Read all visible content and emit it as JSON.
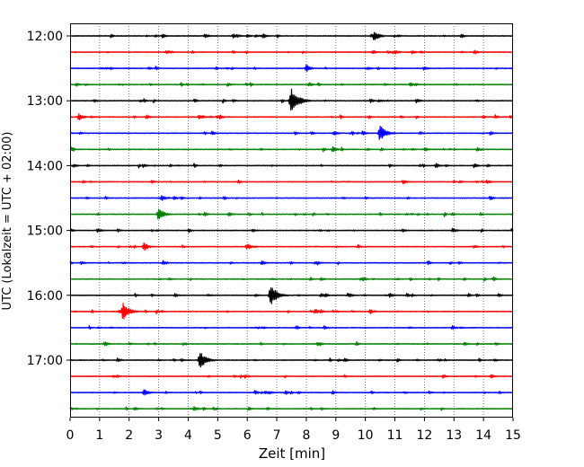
{
  "chart_data": {
    "type": "line",
    "title": "",
    "xlabel": "Zeit  [min]",
    "ylabel": "UTC (Lokalzeit = UTC + 02:00)",
    "xlim": [
      0,
      15
    ],
    "x_ticks": [
      "0",
      "1",
      "2",
      "3",
      "4",
      "5",
      "6",
      "7",
      "8",
      "9",
      "10",
      "11",
      "12",
      "13",
      "14",
      "15"
    ],
    "y_tick_labels": [
      "12:00",
      "13:00",
      "14:00",
      "15:00",
      "16:00",
      "17:00"
    ],
    "grid": "vertical dotted",
    "trace_colors": [
      "#000000",
      "#ff0000",
      "#0000ff",
      "#008000"
    ],
    "trace_interval_minutes": 15,
    "series": [
      {
        "start": "12:00",
        "color": "#000000",
        "events": [
          {
            "x": 10.3,
            "amp": 0.5
          }
        ]
      },
      {
        "start": "12:15",
        "color": "#ff0000",
        "events": []
      },
      {
        "start": "12:30",
        "color": "#0000ff",
        "events": [
          {
            "x": 8.0,
            "amp": 0.35
          }
        ]
      },
      {
        "start": "12:45",
        "color": "#008000",
        "events": []
      },
      {
        "start": "13:00",
        "color": "#000000",
        "events": [
          {
            "x": 7.5,
            "amp": 1.1
          }
        ]
      },
      {
        "start": "13:15",
        "color": "#ff0000",
        "events": [
          {
            "x": 0.3,
            "amp": 0.35
          }
        ]
      },
      {
        "start": "13:30",
        "color": "#0000ff",
        "events": [
          {
            "x": 10.5,
            "amp": 0.75
          }
        ]
      },
      {
        "start": "13:45",
        "color": "#008000",
        "events": [
          {
            "x": 8.9,
            "amp": 0.3
          }
        ]
      },
      {
        "start": "14:00",
        "color": "#000000",
        "events": []
      },
      {
        "start": "14:15",
        "color": "#ff0000",
        "events": []
      },
      {
        "start": "14:30",
        "color": "#0000ff",
        "events": [
          {
            "x": 3.1,
            "amp": 0.3
          }
        ]
      },
      {
        "start": "14:45",
        "color": "#008000",
        "events": [
          {
            "x": 3.0,
            "amp": 0.6
          }
        ]
      },
      {
        "start": "15:00",
        "color": "#000000",
        "events": []
      },
      {
        "start": "15:15",
        "color": "#ff0000",
        "events": [
          {
            "x": 2.5,
            "amp": 0.4
          }
        ]
      },
      {
        "start": "15:30",
        "color": "#0000ff",
        "events": []
      },
      {
        "start": "15:45",
        "color": "#008000",
        "events": []
      },
      {
        "start": "16:00",
        "color": "#000000",
        "events": [
          {
            "x": 6.8,
            "amp": 0.9
          }
        ]
      },
      {
        "start": "16:15",
        "color": "#ff0000",
        "events": [
          {
            "x": 1.8,
            "amp": 0.8
          }
        ]
      },
      {
        "start": "16:30",
        "color": "#0000ff",
        "events": []
      },
      {
        "start": "16:45",
        "color": "#008000",
        "events": []
      },
      {
        "start": "17:00",
        "color": "#000000",
        "events": [
          {
            "x": 4.4,
            "amp": 0.8
          }
        ]
      },
      {
        "start": "17:15",
        "color": "#ff0000",
        "events": []
      },
      {
        "start": "17:30",
        "color": "#0000ff",
        "events": [
          {
            "x": 2.5,
            "amp": 0.35
          }
        ]
      },
      {
        "start": "17:45",
        "color": "#008000",
        "events": []
      }
    ]
  }
}
